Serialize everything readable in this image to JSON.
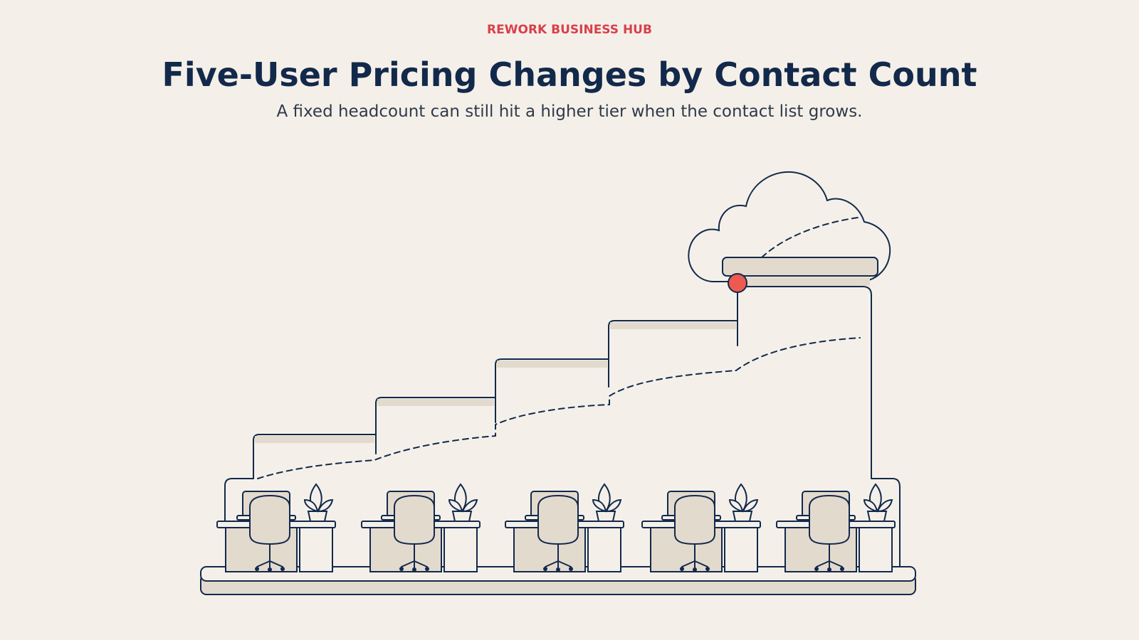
{
  "header": {
    "kicker": "REWORK BUSINESS HUB",
    "title": "Five-User Pricing Changes by Contact Count",
    "subtitle": "A fixed headcount can still hit a higher tier when the contact list grows."
  }
}
